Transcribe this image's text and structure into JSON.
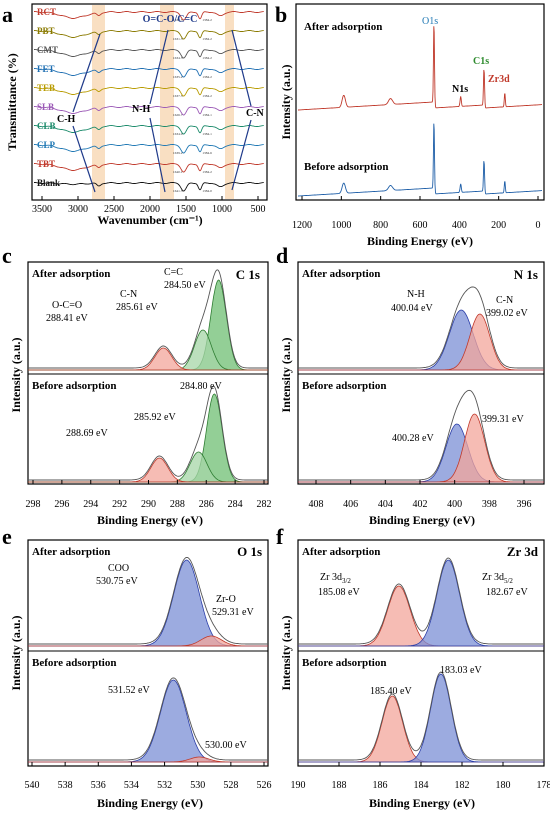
{
  "panels": {
    "a": {
      "letter": "a",
      "ylabel": "Transmittance (%)",
      "xlabel": "Wavenumber (cm⁻¹)",
      "xticks": [
        "3500",
        "3000",
        "2500",
        "2000",
        "1500",
        "1000",
        "500"
      ],
      "samples": [
        "RCT",
        "PBT",
        "CMT",
        "FET",
        "TEB",
        "SLB",
        "CLB",
        "CLP",
        "TBT",
        "Blank"
      ],
      "sample_colors": [
        "#c0392b",
        "#8a7a00",
        "#555555",
        "#1f6fb2",
        "#b89b00",
        "#9b59b6",
        "#1a8a6a",
        "#1f78b4",
        "#c0392b",
        "#111111"
      ],
      "ann": {
        "oc": "O=C-O/C=C",
        "ch": "C-H",
        "nh": "N-H",
        "cn": "C-N"
      },
      "peak_labels": [
        "1632.5",
        "1631.5",
        "1634.5",
        "1635.2",
        "1637.5",
        "1626.7",
        "1634.0",
        "1639.2",
        "1640.1",
        "1641.5"
      ],
      "peak_labels2": [
        "1384.2",
        "1384.2",
        "1384.2",
        "1384.2",
        "1384.2",
        "1384.1",
        "1384.1",
        "1384.6",
        "1384.2",
        "1384.0"
      ],
      "x_min": 3900,
      "x_max": 400
    },
    "b": {
      "letter": "b",
      "ylabel": "Intensity (a.u.)",
      "xlabel": "Binding Energy (eV)",
      "xticks": [
        "1200",
        "1000",
        "800",
        "600",
        "400",
        "200",
        "0"
      ],
      "top_label": "After adsorption",
      "bottom_label": "Before adsorption",
      "peaks": {
        "o1s": "O1s",
        "c1s": "C1s",
        "n1s": "N1s",
        "zr3d": "Zr3d"
      },
      "colors": {
        "after": "#c0392b",
        "before": "#1f5fa8",
        "o1s": "#1f78b4",
        "c1s": "#2e8b2e",
        "zr3d": "#c0392b"
      }
    },
    "c": {
      "letter": "c",
      "title": "C 1s",
      "ylabel": "Intensity (a.u.)",
      "xlabel": "Binding Energy (eV)",
      "xticks": [
        "298",
        "296",
        "294",
        "292",
        "290",
        "288",
        "286",
        "284",
        "282"
      ],
      "top_label": "After adsorption",
      "bottom_label": "Before adsorption",
      "after": {
        "cc_name": "C=C",
        "cc": "284.50 eV",
        "cn_name": "C-N",
        "cn": "285.61 eV",
        "oco_name": "O-C=O",
        "oco": "288.41 eV"
      },
      "before": {
        "p1": "284.80 eV",
        "p2": "285.92 eV",
        "p3": "288.69 eV"
      }
    },
    "d": {
      "letter": "d",
      "title": "N 1s",
      "ylabel": "Intensity (a.u.)",
      "xlabel": "Binding Energy (eV)",
      "xticks": [
        "408",
        "406",
        "404",
        "402",
        "400",
        "398",
        "396"
      ],
      "top_label": "After adsorption",
      "bottom_label": "Before adsorption",
      "after": {
        "nh_name": "N-H",
        "nh": "400.04 eV",
        "cn_name": "C-N",
        "cn": "399.02 eV"
      },
      "before": {
        "p1": "400.28 eV",
        "p2": "399.31 eV"
      }
    },
    "e": {
      "letter": "e",
      "title": "O 1s",
      "ylabel": "Intensity (a.u.)",
      "xlabel": "Binding Energy (eV)",
      "xticks": [
        "540",
        "538",
        "536",
        "534",
        "532",
        "530",
        "528",
        "526"
      ],
      "top_label": "After adsorption",
      "bottom_label": "Before adsorption",
      "after": {
        "coo_name": "COO",
        "coo": "530.75 eV",
        "zro_name": "Zr-O",
        "zro": "529.31 eV"
      },
      "before": {
        "p1": "531.52 eV",
        "p2": "530.00 eV"
      }
    },
    "f": {
      "letter": "f",
      "title": "Zr 3d",
      "ylabel": "Intensity (a.u.)",
      "xlabel": "Binding Energy (eV)",
      "xticks": [
        "190",
        "188",
        "186",
        "184",
        "182",
        "180",
        "178"
      ],
      "top_label": "After adsorption",
      "bottom_label": "Before adsorption",
      "after": {
        "p32_name": "Zr 3d",
        "p32_sub": "3/2",
        "p32": "185.08 eV",
        "p52_name": "Zr 3d",
        "p52_sub": "5/2",
        "p52": "182.67 eV"
      },
      "before": {
        "p1": "185.40 eV",
        "p2": "183.03 eV"
      }
    }
  },
  "chart_data": [
    {
      "type": "line",
      "panel": "a",
      "xlabel": "Wavenumber (cm⁻¹)",
      "ylabel": "Transmittance (%)",
      "xlim": [
        3900,
        400
      ],
      "series": [
        {
          "name": "RCT"
        },
        {
          "name": "PBT"
        },
        {
          "name": "CMT"
        },
        {
          "name": "FET"
        },
        {
          "name": "TEB"
        },
        {
          "name": "SLB"
        },
        {
          "name": "CLB"
        },
        {
          "name": "CLP"
        },
        {
          "name": "TBT"
        },
        {
          "name": "Blank"
        }
      ]
    },
    {
      "type": "line",
      "panel": "b",
      "xlabel": "Binding Energy (eV)",
      "ylabel": "Intensity (a.u.)",
      "xlim": [
        1200,
        0
      ],
      "series": [
        {
          "name": "After adsorption"
        },
        {
          "name": "Before adsorption"
        }
      ],
      "annotations": [
        {
          "text": "O1s",
          "x": 531
        },
        {
          "text": "C1s",
          "x": 285
        },
        {
          "text": "N1s",
          "x": 400
        },
        {
          "text": "Zr3d",
          "x": 183
        }
      ]
    },
    {
      "type": "line",
      "panel": "c",
      "xlabel": "Binding Energy (eV)",
      "ylabel": "Intensity (a.u.)",
      "xlim": [
        298,
        281
      ],
      "after_peaks": [
        284.5,
        285.61,
        288.41
      ],
      "before_peaks": [
        284.8,
        285.92,
        288.69
      ]
    },
    {
      "type": "line",
      "panel": "d",
      "xlabel": "Binding Energy (eV)",
      "ylabel": "Intensity (a.u.)",
      "xlim": [
        409,
        395.5
      ],
      "after_peaks": [
        400.04,
        399.02
      ],
      "before_peaks": [
        400.28,
        399.31
      ]
    },
    {
      "type": "line",
      "panel": "e",
      "xlabel": "Binding Energy (eV)",
      "ylabel": "Intensity (a.u.)",
      "xlim": [
        540,
        526
      ],
      "after_peaks": [
        530.75,
        529.31
      ],
      "before_peaks": [
        531.52,
        530.0
      ]
    },
    {
      "type": "line",
      "panel": "f",
      "xlabel": "Binding Energy (eV)",
      "ylabel": "Intensity (a.u.)",
      "xlim": [
        190,
        178
      ],
      "after_peaks": [
        185.08,
        182.67
      ],
      "before_peaks": [
        185.4,
        183.03
      ]
    }
  ]
}
